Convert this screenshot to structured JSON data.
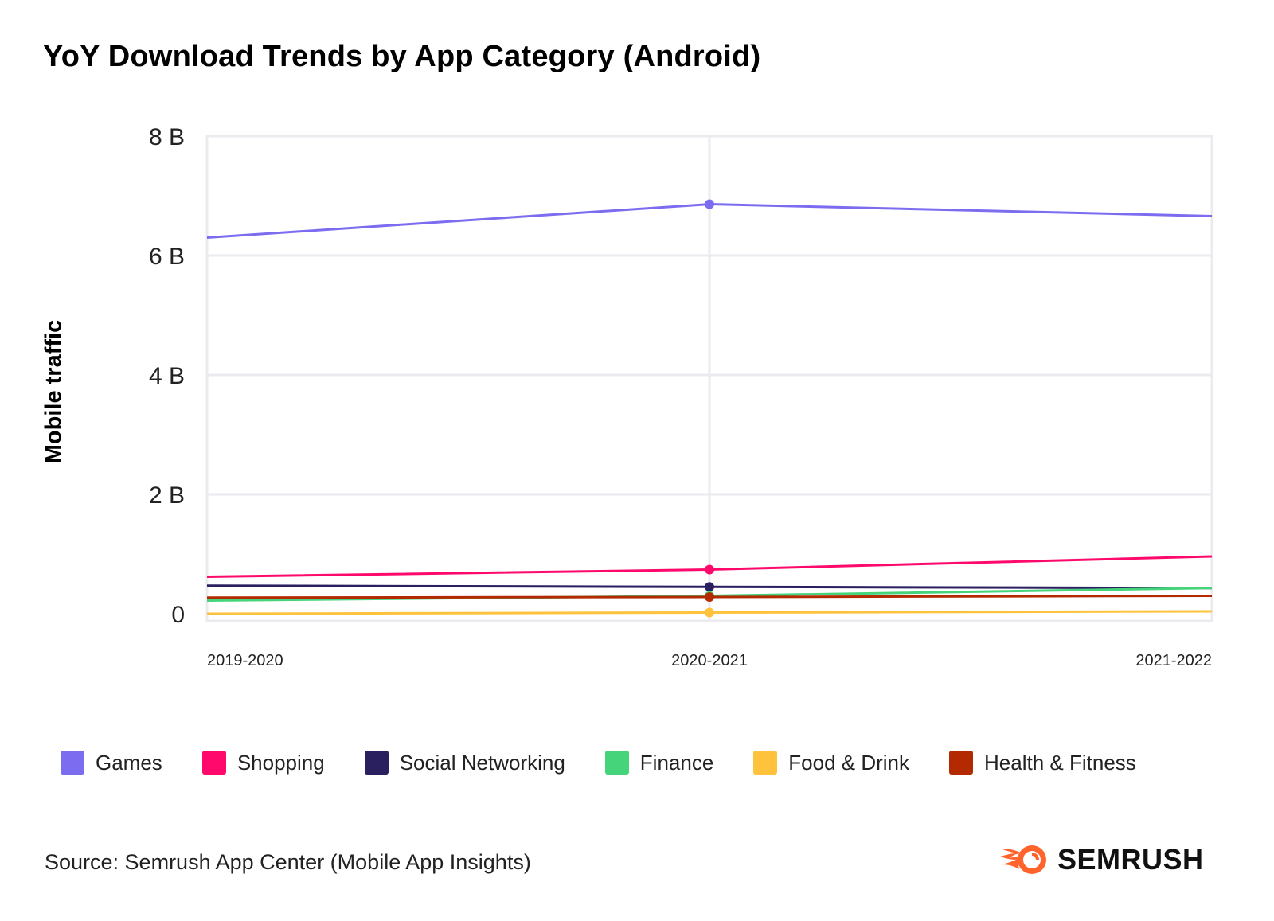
{
  "title": "YoY Download Trends by App Category (Android)",
  "source": "Source: Semrush App Center (Mobile App Insights)",
  "brand": {
    "name": "SEMRUSH",
    "logo_icon": "semrush-fire-icon",
    "color": "#FF642D"
  },
  "chart_data": {
    "type": "line",
    "title": "YoY Download Trends by App Category (Android)",
    "xlabel": "",
    "ylabel": "Mobile traffic",
    "ylim": [
      0,
      8
    ],
    "unit": "B",
    "yticks": [
      {
        "value": 0,
        "label": "0"
      },
      {
        "value": 2,
        "label": "2 B"
      },
      {
        "value": 4,
        "label": "4 B"
      },
      {
        "value": 6,
        "label": "6 B"
      },
      {
        "value": 8,
        "label": "8 B"
      }
    ],
    "categories": [
      "2019-2020",
      "2020-2021",
      "2021-2022"
    ],
    "grid": true,
    "legend_position": "bottom",
    "series": [
      {
        "name": "Games",
        "color": "#7B6CF0",
        "values": [
          6.3,
          6.86,
          6.66
        ]
      },
      {
        "name": "Shopping",
        "color": "#FF0A6C",
        "values": [
          0.62,
          0.74,
          0.96
        ]
      },
      {
        "name": "Social Networking",
        "color": "#2A2060",
        "values": [
          0.47,
          0.45,
          0.43
        ]
      },
      {
        "name": "Finance",
        "color": "#45D47A",
        "values": [
          0.22,
          0.3,
          0.43
        ]
      },
      {
        "name": "Food & Drink",
        "color": "#FFC23D",
        "values": [
          0.0,
          0.02,
          0.04
        ]
      },
      {
        "name": "Health & Fitness",
        "color": "#B42A00",
        "values": [
          0.27,
          0.28,
          0.3
        ]
      }
    ]
  }
}
